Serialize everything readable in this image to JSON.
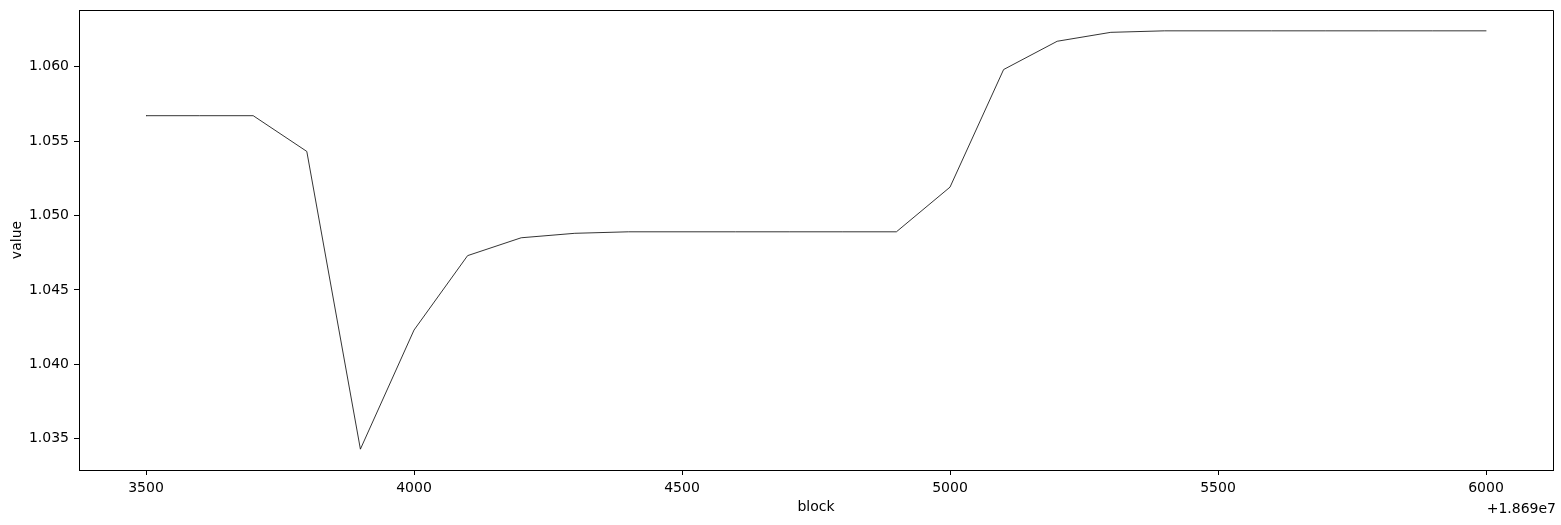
{
  "chart_data": {
    "type": "line",
    "xlabel": "block",
    "ylabel": "value",
    "annotations": [
      "+1.869e7"
    ],
    "x": [
      3500,
      3600,
      3700,
      3800,
      3900,
      4000,
      4100,
      4200,
      4300,
      4400,
      4500,
      4600,
      4700,
      4800,
      4900,
      5000,
      5100,
      5200,
      5300,
      5400,
      5500,
      5600,
      5700,
      5800,
      5900,
      6000
    ],
    "series": [
      {
        "color": "#000000",
        "values": [
          1.0567,
          1.0567,
          1.0567,
          1.0543,
          1.0343,
          1.0423,
          1.0473,
          1.0485,
          1.0488,
          1.0489,
          1.0489,
          1.0489,
          1.0489,
          1.0489,
          1.0489,
          1.0519,
          1.0598,
          1.0617,
          1.0623,
          1.0624,
          1.0624,
          1.0624,
          1.0624,
          1.0624,
          1.0624,
          1.0624
        ]
      }
    ],
    "xlim": [
      3375,
      6125
    ],
    "xticks": [
      3500,
      4000,
      4500,
      5000,
      5500,
      6000
    ],
    "ylim": [
      1.0329,
      1.0638
    ],
    "yticks": [
      {
        "value": 1.035,
        "label": "1.035"
      },
      {
        "value": 1.04,
        "label": "1.040"
      },
      {
        "value": 1.045,
        "label": "1.045"
      },
      {
        "value": 1.05,
        "label": "1.050"
      },
      {
        "value": 1.055,
        "label": "1.055"
      },
      {
        "value": 1.06,
        "label": "1.060"
      }
    ]
  }
}
